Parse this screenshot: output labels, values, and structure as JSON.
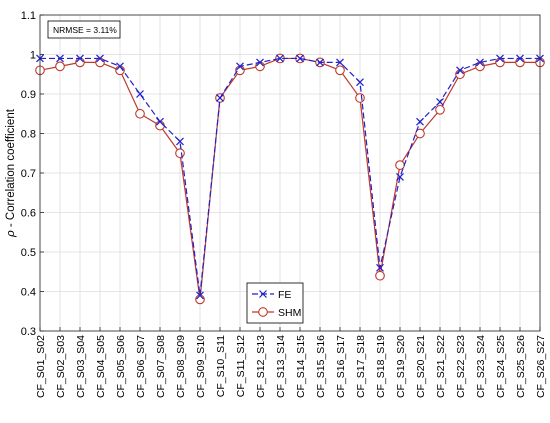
{
  "chart_data": {
    "type": "line",
    "ylabel_symbol": "ρ",
    "ylabel_text": " - Correlation coefficient",
    "ylim": [
      0.3,
      1.1
    ],
    "yticks": [
      "0.3",
      "0.4",
      "0.5",
      "0.6",
      "0.7",
      "0.8",
      "0.9",
      "1",
      "1.1"
    ],
    "grid": true,
    "legend_position": "bottom-center",
    "annotation": "NRMSE = 3.11%",
    "categories": [
      "CF_S01_S02",
      "CF_S02_S03",
      "CF_S03_S04",
      "CF_S04_S05",
      "CF_S05_S06",
      "CF_S06_S07",
      "CF_S07_S08",
      "CF_S08_S09",
      "CF_S09_S10",
      "CF_S10_S11",
      "CF_S11_S12",
      "CF_S12_S13",
      "CF_S13_S14",
      "CF_S14_S15",
      "CF_S15_S16",
      "CF_S16_S17",
      "CF_S17_S18",
      "CF_S18_S19",
      "CF_S19_S20",
      "CF_S20_S21",
      "CF_S21_S22",
      "CF_S22_S23",
      "CF_S23_S24",
      "CF_S24_S25",
      "CF_S25_S26",
      "CF_S26_S27"
    ],
    "series": [
      {
        "name": "FE",
        "color": "#2222cc",
        "marker": "x",
        "line_style": "dashed",
        "values": [
          0.99,
          0.99,
          0.99,
          0.99,
          0.97,
          0.9,
          0.83,
          0.78,
          0.39,
          0.89,
          0.97,
          0.98,
          0.99,
          0.99,
          0.98,
          0.98,
          0.93,
          0.46,
          0.69,
          0.83,
          0.88,
          0.96,
          0.98,
          0.99,
          0.99,
          0.99
        ]
      },
      {
        "name": "SHM",
        "color": "#c0392b",
        "marker": "circle",
        "line_style": "solid",
        "values": [
          0.96,
          0.97,
          0.98,
          0.98,
          0.96,
          0.85,
          0.82,
          0.75,
          0.38,
          0.89,
          0.96,
          0.97,
          0.99,
          0.99,
          0.98,
          0.96,
          0.89,
          0.44,
          0.72,
          0.8,
          0.86,
          0.95,
          0.97,
          0.98,
          0.98,
          0.98
        ]
      }
    ]
  }
}
